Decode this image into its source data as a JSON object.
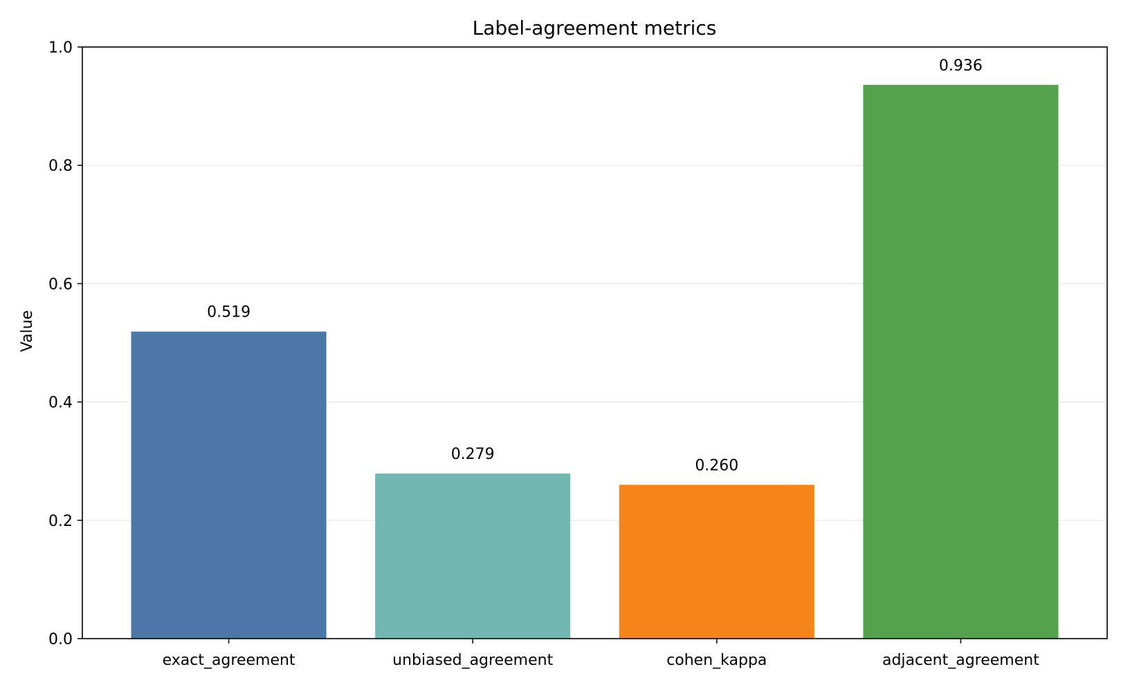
{
  "chart_data": {
    "type": "bar",
    "title": "Label-agreement metrics",
    "xlabel": "",
    "ylabel": "Value",
    "categories": [
      "exact_agreement",
      "unbiased_agreement",
      "cohen_kappa",
      "adjacent_agreement"
    ],
    "values": [
      0.519,
      0.279,
      0.26,
      0.936
    ],
    "value_labels": [
      "0.519",
      "0.279",
      "0.260",
      "0.936"
    ],
    "colors": [
      "#4c78a8",
      "#72b7b2",
      "#f58518",
      "#54a24b"
    ],
    "ylim": [
      0,
      1.0
    ],
    "yticks": [
      0.0,
      0.2,
      0.4,
      0.6,
      0.8,
      1.0
    ],
    "ytick_labels": [
      "0.0",
      "0.2",
      "0.4",
      "0.6",
      "0.8",
      "1.0"
    ],
    "grid": "horizontal",
    "legend": "none"
  }
}
